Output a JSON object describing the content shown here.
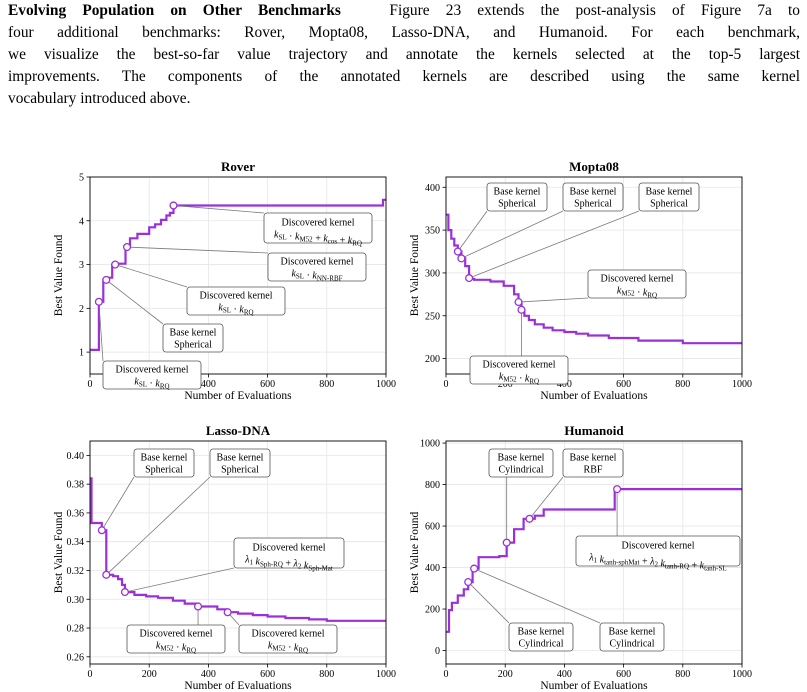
{
  "paragraph": {
    "heading": "Evolving Population on Other Benchmarks",
    "line1": "Figure 23 extends the post-analysis of Figure 7a to",
    "line2": "four additional benchmarks: Rover, Mopta08, Lasso-DNA, and Humanoid. For each benchmark,",
    "line3": "we visualize the best-so-far value trajectory and annotate the kernels selected at the top-5 largest",
    "line4": "improvements. The components of the annotated kernels are described using the same kernel",
    "line5": "vocabulary introduced above."
  },
  "colors": {
    "line": "#9b30d9",
    "grid": "#e6e6e6",
    "box_edge": "#555555",
    "leader": "#7a7a7a"
  },
  "chart_data": [
    {
      "type": "line",
      "title": "Rover",
      "xlabel": "Number of Evaluations",
      "ylabel": "Best Value Found",
      "xlim": [
        0,
        1000
      ],
      "ylim": [
        0.5,
        5
      ],
      "xticks": [
        0,
        200,
        400,
        600,
        800,
        1000
      ],
      "yticks": [
        1,
        2,
        3,
        4,
        5
      ],
      "ytick_labels": [
        "1",
        "2",
        "3",
        "4",
        "5"
      ],
      "grid": true,
      "series": [
        {
          "x": [
            0,
            30,
            30,
            45,
            45,
            55,
            55,
            75,
            75,
            85,
            85,
            105,
            105,
            120,
            120,
            135,
            135,
            160,
            160,
            200,
            200,
            220,
            220,
            240,
            240,
            258,
            258,
            270,
            270,
            282,
            282,
            990,
            990,
            1000
          ],
          "y": [
            1.05,
            1.05,
            2.15,
            2.15,
            2.65,
            2.65,
            2.7,
            2.7,
            3.0,
            3.0,
            3.02,
            3.02,
            3.02,
            3.02,
            3.4,
            3.4,
            3.6,
            3.6,
            3.7,
            3.7,
            3.85,
            3.85,
            3.92,
            3.92,
            4.02,
            4.02,
            4.12,
            4.12,
            4.18,
            4.18,
            4.35,
            4.35,
            4.48,
            4.48
          ]
        }
      ],
      "markers": [
        {
          "x": 30,
          "y": 2.15
        },
        {
          "x": 55,
          "y": 2.65
        },
        {
          "x": 85,
          "y": 3.0
        },
        {
          "x": 125,
          "y": 3.4
        },
        {
          "x": 282,
          "y": 4.35
        }
      ],
      "annotations": [
        {
          "marker": 4,
          "line1": "Discovered kernel",
          "math": "kSL·kM52+kcos+kRQ",
          "cx": 318,
          "cy": 228,
          "w": 108,
          "h": 30
        },
        {
          "marker": 3,
          "line1": "Discovered kernel",
          "math": "kSL·kNN-RBF",
          "cx": 317,
          "cy": 267,
          "w": 98,
          "h": 28
        },
        {
          "marker": 2,
          "line1": "Discovered kernel",
          "math": "kSL·kRQ",
          "cx": 236,
          "cy": 301,
          "w": 98,
          "h": 28
        },
        {
          "marker": 1,
          "line1": "Base kernel",
          "line2": "Spherical",
          "cx": 193,
          "cy": 338,
          "w": 60,
          "h": 28
        },
        {
          "marker": 0,
          "line1": "Discovered kernel",
          "math": "kSL·kRQ",
          "cx": 152,
          "cy": 375,
          "w": 98,
          "h": 28
        }
      ]
    },
    {
      "type": "line",
      "title": "Mopta08",
      "xlabel": "Number of Evaluations",
      "ylabel": "Best Value Found",
      "xlim": [
        0,
        1000
      ],
      "ylim": [
        182,
        412
      ],
      "xticks": [
        0,
        200,
        400,
        600,
        800,
        1000
      ],
      "yticks": [
        200,
        250,
        300,
        350,
        400
      ],
      "ytick_labels": [
        "200",
        "250",
        "300",
        "350",
        "400"
      ],
      "grid": true,
      "series": [
        {
          "x": [
            0,
            8,
            8,
            18,
            18,
            28,
            28,
            40,
            40,
            52,
            52,
            65,
            65,
            78,
            78,
            95,
            95,
            150,
            150,
            195,
            195,
            230,
            230,
            245,
            245,
            255,
            255,
            265,
            265,
            280,
            280,
            300,
            300,
            330,
            330,
            360,
            360,
            400,
            400,
            440,
            440,
            480,
            480,
            550,
            550,
            650,
            650,
            800,
            800,
            1000
          ],
          "y": [
            368,
            368,
            350,
            350,
            340,
            340,
            332,
            332,
            325,
            325,
            317,
            317,
            308,
            308,
            293,
            293,
            292,
            292,
            290,
            290,
            285,
            285,
            275,
            275,
            266,
            266,
            257,
            257,
            250,
            250,
            245,
            245,
            240,
            240,
            236,
            236,
            233,
            233,
            231,
            231,
            229,
            229,
            227,
            227,
            224,
            224,
            221,
            221,
            218,
            218
          ]
        }
      ],
      "markers": [
        {
          "x": 40,
          "y": 325
        },
        {
          "x": 52,
          "y": 317
        },
        {
          "x": 78,
          "y": 294
        },
        {
          "x": 245,
          "y": 266
        },
        {
          "x": 255,
          "y": 257
        }
      ],
      "annotations": [
        {
          "marker": 0,
          "line1": "Base kernel",
          "line2": "Spherical",
          "cx": 517,
          "cy": 197,
          "w": 60,
          "h": 28
        },
        {
          "marker": 1,
          "line1": "Base kernel",
          "line2": "Spherical",
          "cx": 593,
          "cy": 197,
          "w": 60,
          "h": 28
        },
        {
          "marker": 2,
          "line1": "Base kernel",
          "line2": "Spherical",
          "cx": 669,
          "cy": 197,
          "w": 60,
          "h": 28
        },
        {
          "marker": 3,
          "line1": "Discovered kernel",
          "math": "kM52·kRQ",
          "cx": 637,
          "cy": 284,
          "w": 98,
          "h": 28
        },
        {
          "marker": 4,
          "line1": "Discovered kernel",
          "math": "kM52·kRQ",
          "cx": 519,
          "cy": 370,
          "w": 98,
          "h": 28
        }
      ]
    },
    {
      "type": "line",
      "title": "Lasso-DNA",
      "xlabel": "Number of Evaluations",
      "ylabel": "Best Value Found",
      "xlim": [
        0,
        1000
      ],
      "ylim": [
        0.255,
        0.41
      ],
      "xticks": [
        0,
        200,
        400,
        600,
        800,
        1000
      ],
      "yticks": [
        0.26,
        0.28,
        0.3,
        0.32,
        0.34,
        0.36,
        0.38,
        0.4
      ],
      "ytick_labels": [
        "0.26",
        "0.28",
        "0.30",
        "0.32",
        "0.34",
        "0.36",
        "0.38",
        "0.40"
      ],
      "grid": true,
      "series": [
        {
          "x": [
            0,
            5,
            5,
            40,
            40,
            55,
            55,
            78,
            78,
            95,
            95,
            108,
            108,
            118,
            118,
            150,
            150,
            190,
            190,
            230,
            230,
            280,
            280,
            320,
            320,
            360,
            360,
            430,
            430,
            460,
            460,
            500,
            500,
            550,
            550,
            600,
            600,
            660,
            660,
            740,
            740,
            800,
            800,
            1000
          ],
          "y": [
            0.384,
            0.384,
            0.353,
            0.353,
            0.348,
            0.348,
            0.317,
            0.317,
            0.316,
            0.316,
            0.314,
            0.314,
            0.31,
            0.31,
            0.305,
            0.305,
            0.303,
            0.303,
            0.302,
            0.302,
            0.301,
            0.301,
            0.299,
            0.299,
            0.297,
            0.297,
            0.295,
            0.295,
            0.293,
            0.293,
            0.291,
            0.291,
            0.29,
            0.29,
            0.289,
            0.289,
            0.288,
            0.288,
            0.287,
            0.287,
            0.286,
            0.286,
            0.285,
            0.285
          ]
        }
      ],
      "markers": [
        {
          "x": 40,
          "y": 0.348
        },
        {
          "x": 55,
          "y": 0.317
        },
        {
          "x": 118,
          "y": 0.305
        },
        {
          "x": 365,
          "y": 0.295
        },
        {
          "x": 465,
          "y": 0.291
        }
      ],
      "annotations": [
        {
          "marker": 0,
          "line1": "Base kernel",
          "line2": "Spherical",
          "cx": 164,
          "cy": 463,
          "w": 60,
          "h": 28
        },
        {
          "marker": 1,
          "line1": "Base kernel",
          "line2": "Spherical",
          "cx": 240,
          "cy": 463,
          "w": 60,
          "h": 28
        },
        {
          "marker": 2,
          "line1": "Discovered kernel",
          "math": "λ1 kSph-RQ+λ2 kSph-Mat",
          "cx": 289,
          "cy": 553,
          "w": 110,
          "h": 30
        },
        {
          "marker": 3,
          "line1": "Discovered kernel",
          "math": "kM52·kRQ",
          "cx": 176,
          "cy": 639,
          "w": 98,
          "h": 28
        },
        {
          "marker": 4,
          "line1": "Discovered kernel",
          "math": "kM52·kRQ",
          "cx": 288,
          "cy": 639,
          "w": 98,
          "h": 28
        }
      ]
    },
    {
      "type": "line",
      "title": "Humanoid",
      "xlabel": "Number of Evaluations",
      "ylabel": "Best Value Found",
      "xlim": [
        0,
        1000
      ],
      "ylim": [
        -65,
        1010
      ],
      "xticks": [
        0,
        200,
        400,
        600,
        800,
        1000
      ],
      "yticks": [
        0,
        200,
        400,
        600,
        800,
        1000
      ],
      "ytick_labels": [
        "0",
        "200",
        "400",
        "600",
        "800",
        "1000"
      ],
      "grid": true,
      "series": [
        {
          "x": [
            0,
            10,
            10,
            20,
            20,
            40,
            40,
            60,
            60,
            75,
            75,
            90,
            90,
            110,
            110,
            180,
            180,
            205,
            205,
            230,
            230,
            262,
            262,
            300,
            300,
            330,
            330,
            570,
            570,
            1000
          ],
          "y": [
            90,
            90,
            195,
            195,
            230,
            230,
            265,
            265,
            295,
            295,
            330,
            330,
            395,
            395,
            450,
            450,
            455,
            455,
            520,
            520,
            585,
            585,
            635,
            635,
            650,
            650,
            680,
            680,
            778,
            778
          ]
        }
      ],
      "markers": [
        {
          "x": 75,
          "y": 330
        },
        {
          "x": 95,
          "y": 395
        },
        {
          "x": 205,
          "y": 520
        },
        {
          "x": 282,
          "y": 635
        },
        {
          "x": 578,
          "y": 778
        }
      ],
      "annotations": [
        {
          "marker": 2,
          "line1": "Base kernel",
          "line2": "Cylindrical",
          "cx": 521,
          "cy": 463,
          "w": 64,
          "h": 28
        },
        {
          "marker": 3,
          "line1": "Base kernel",
          "line2": "RBF",
          "cx": 593,
          "cy": 463,
          "w": 60,
          "h": 28
        },
        {
          "marker": 4,
          "line1": "Discovered kernel",
          "math": "λ1 ktanh-sphMat+λ2 ktanh-RQ+ktanh-SL",
          "cx": 658,
          "cy": 551,
          "w": 164,
          "h": 30
        },
        {
          "marker": 0,
          "line1": "Base kernel",
          "line2": "Cylindrical",
          "cx": 541,
          "cy": 637,
          "w": 64,
          "h": 28
        },
        {
          "marker": 1,
          "line1": "Base kernel",
          "line2": "Cylindrical",
          "cx": 632,
          "cy": 637,
          "w": 64,
          "h": 28
        }
      ]
    }
  ]
}
